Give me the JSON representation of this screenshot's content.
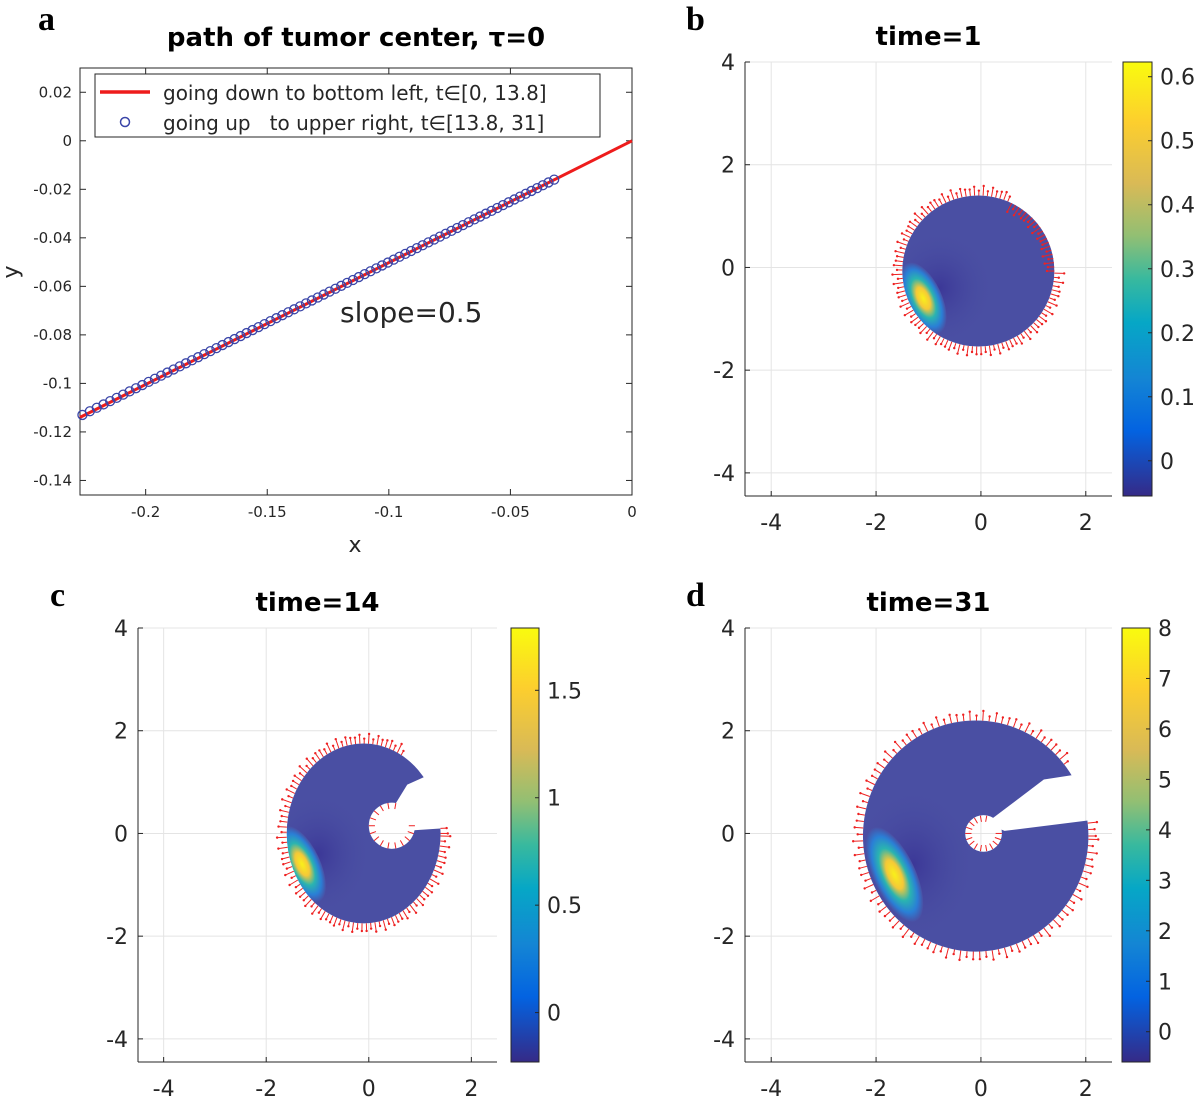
{
  "chart_data": [
    {
      "panel": "a",
      "type": "line",
      "title": "path of tumor center, τ=0",
      "xlabel": "x",
      "ylabel": "y",
      "xlim": [
        -0.227,
        0
      ],
      "ylim": [
        -0.146,
        0.03
      ],
      "xticks": [
        -0.2,
        -0.15,
        -0.1,
        -0.05,
        0
      ],
      "xtick_labels": [
        "-0.2",
        "-0.15",
        "-0.1",
        "-0.05",
        "0"
      ],
      "yticks": [
        0.02,
        0,
        -0.02,
        -0.04,
        -0.06,
        -0.08,
        -0.1,
        -0.12,
        -0.14
      ],
      "ytick_labels": [
        "0.02",
        "0",
        "-0.02",
        "-0.04",
        "-0.06",
        "-0.08",
        "-0.1",
        "-0.12",
        "-0.14"
      ],
      "annotation": "slope=0.5",
      "series": [
        {
          "name": "going down to bottom left, t∈[0, 13.8]",
          "style": "line",
          "color": "#ee1c1c",
          "x": [
            0,
            -0.228
          ],
          "y": [
            0,
            -0.114
          ]
        },
        {
          "name": "going up   to upper right, t∈[13.8, 31]",
          "style": "circle",
          "color": "#3a45a8",
          "x_range": [
            -0.226,
            -0.032
          ],
          "slope": 0.5,
          "count": 80
        }
      ],
      "legend": "top-left"
    },
    {
      "panel": "b",
      "type": "heatmap",
      "title": "time=1",
      "xlim": [
        -4.5,
        2.5
      ],
      "ylim": [
        -4.45,
        4
      ],
      "xticks": [
        -4,
        -2,
        0,
        2
      ],
      "xtick_labels": [
        "-4",
        "-2",
        "0",
        "2"
      ],
      "yticks": [
        4,
        2,
        0,
        -2,
        -4
      ],
      "ytick_labels": [
        "4",
        "2",
        "0",
        "-2",
        "-4"
      ],
      "colorbar": {
        "range": [
          -0.055,
          0.623
        ],
        "ticks": [
          0.6,
          0.5,
          0.4,
          0.3,
          0.2,
          0.1,
          0
        ],
        "tick_labels": [
          "0.6",
          "0.5",
          "0.4",
          "0.3",
          "0.2",
          "0.1",
          "0"
        ]
      }
    },
    {
      "panel": "c",
      "type": "heatmap",
      "title": "time=14",
      "xlim": [
        -4.5,
        2.5
      ],
      "ylim": [
        -4.45,
        4
      ],
      "xticks": [
        -4,
        -2,
        0,
        2
      ],
      "xtick_labels": [
        "-4",
        "-2",
        "0",
        "2"
      ],
      "yticks": [
        4,
        2,
        0,
        -2,
        -4
      ],
      "ytick_labels": [
        "4",
        "2",
        "0",
        "-2",
        "-4"
      ],
      "colorbar": {
        "range": [
          -0.23,
          1.79
        ],
        "ticks": [
          1.5,
          1,
          0.5,
          0
        ],
        "tick_labels": [
          "1.5",
          "1",
          "0.5",
          "0"
        ]
      }
    },
    {
      "panel": "d",
      "type": "heatmap",
      "title": "time=31",
      "xlim": [
        -4.5,
        2.5
      ],
      "ylim": [
        -4.45,
        4
      ],
      "xticks": [
        -4,
        -2,
        0,
        2
      ],
      "xtick_labels": [
        "-4",
        "-2",
        "0",
        "2"
      ],
      "yticks": [
        4,
        2,
        0,
        -2,
        -4
      ],
      "ytick_labels": [
        "4",
        "2",
        "0",
        "-2",
        "-4"
      ],
      "colorbar": {
        "range": [
          -0.6,
          8
        ],
        "ticks": [
          8,
          7,
          6,
          5,
          4,
          3,
          2,
          1,
          0
        ],
        "tick_labels": [
          "8",
          "7",
          "6",
          "5",
          "4",
          "3",
          "2",
          "1",
          "0"
        ]
      }
    }
  ],
  "colors": {
    "tumor_base": "#4a4fa3",
    "arrows": "#ee2222",
    "grid": "#e4e4e4"
  }
}
